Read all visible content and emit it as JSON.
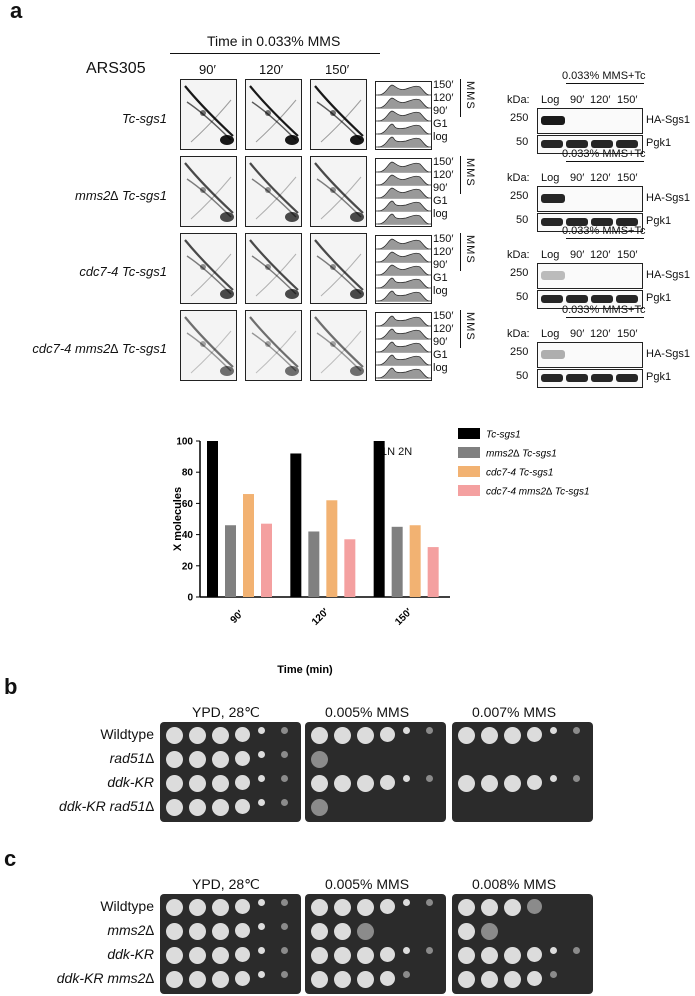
{
  "panels": {
    "a": "a",
    "b": "b",
    "c": "c"
  },
  "panel_a": {
    "time_header": "Time in 0.033% MMS",
    "locus": "ARS305",
    "time_cols": [
      "90′",
      "120′",
      "150′"
    ],
    "strains": [
      "Tc-sgs1",
      "mms2∆ Tc-sgs1",
      "cdc7-4 Tc-sgs1",
      "cdc7-4 mms2∆ Tc-sgs1"
    ],
    "flow_labels": [
      "150′",
      "120′",
      "90′",
      "G1",
      "log"
    ],
    "flow_side": "MMS",
    "flow_axis": "1N 2N",
    "blot": {
      "header": "0.033% MMS+Tc",
      "kda": "kDa:",
      "lanes": [
        "Log",
        "90′",
        "120′",
        "150′"
      ],
      "markers": [
        "250",
        "50"
      ],
      "proteins": [
        "HA-Sgs1",
        "Pgk1"
      ]
    }
  },
  "chart_data": {
    "type": "bar",
    "categories": [
      "90′",
      "120′",
      "150′"
    ],
    "series": [
      {
        "name": "Tc-sgs1",
        "values": [
          100,
          92,
          100
        ],
        "color": "#000000"
      },
      {
        "name": "mms2∆ Tc-sgs1",
        "values": [
          46,
          42,
          45
        ],
        "color": "#808080"
      },
      {
        "name": "cdc7-4 Tc-sgs1",
        "values": [
          66,
          62,
          46
        ],
        "color": "#f2b272"
      },
      {
        "name": "cdc7-4 mms2∆ Tc-sgs1",
        "values": [
          47,
          37,
          32
        ],
        "color": "#f4a0a0"
      }
    ],
    "xlabel": "Time (min)",
    "ylabel": "X molecules",
    "ylim": [
      0,
      100
    ],
    "yticks": [
      "0",
      "20",
      "40",
      "60",
      "80",
      "100"
    ],
    "legend_position": "right",
    "grid": false
  },
  "panel_b": {
    "conditions": [
      "YPD, 28℃",
      "0.005% MMS",
      "0.007% MMS"
    ],
    "strains": [
      "Wildtype",
      "rad51∆",
      "ddk-KR",
      "ddk-KR rad51∆"
    ]
  },
  "panel_c": {
    "conditions": [
      "YPD, 28℃",
      "0.005% MMS",
      "0.008% MMS"
    ],
    "strains": [
      "Wildtype",
      "mms2∆",
      "ddk-KR",
      "ddk-KR mms2∆"
    ]
  }
}
